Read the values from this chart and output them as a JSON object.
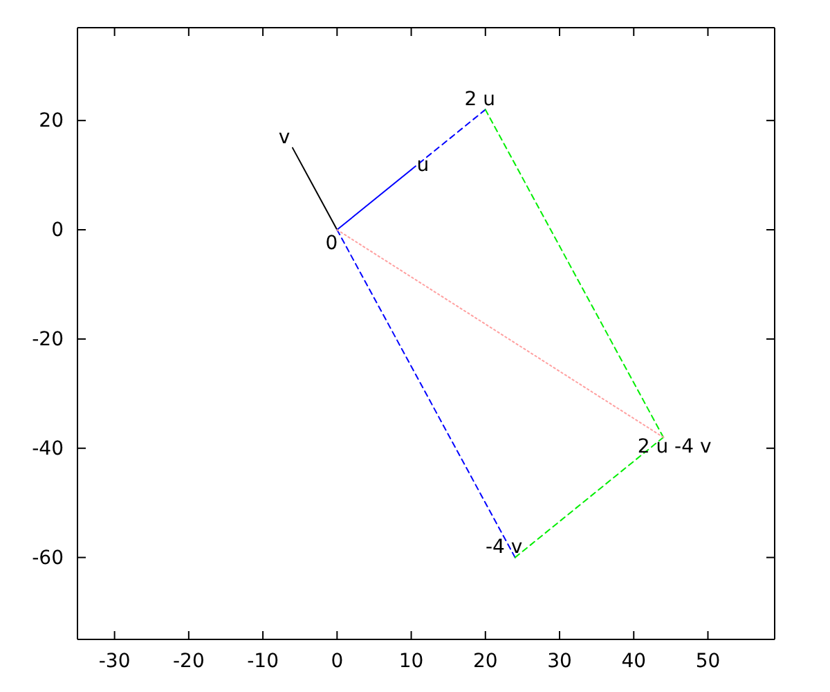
{
  "chart_data": {
    "type": "line",
    "xlim": [
      -35,
      59
    ],
    "ylim": [
      -75,
      37
    ],
    "xticks": [
      -30,
      -20,
      -10,
      0,
      10,
      20,
      30,
      40,
      50
    ],
    "yticks": [
      -60,
      -40,
      -20,
      0,
      20
    ],
    "grid": false,
    "series": [
      {
        "color": "#0000ff",
        "line_style": "solid",
        "x": [
          0,
          10
        ],
        "values": [
          0,
          11
        ]
      },
      {
        "color": "#000000",
        "line_style": "solid",
        "x": [
          0,
          -6
        ],
        "values": [
          0,
          15
        ]
      },
      {
        "color": "#0000ff",
        "line_style": "dashed",
        "x": [
          10,
          20
        ],
        "values": [
          11,
          22
        ]
      },
      {
        "color": "#0000ff",
        "line_style": "dashed",
        "x": [
          0,
          24
        ],
        "values": [
          0,
          -60
        ]
      },
      {
        "color": "#00ee00",
        "line_style": "dashed",
        "x": [
          20,
          44
        ],
        "values": [
          22,
          -38
        ]
      },
      {
        "color": "#00ee00",
        "line_style": "dashed",
        "x": [
          24,
          44
        ],
        "values": [
          -60,
          -38
        ]
      },
      {
        "color": "#ffa0a0",
        "line_style": "dotted",
        "x": [
          0,
          44
        ],
        "values": [
          0,
          -38
        ]
      }
    ],
    "annotations": [
      {
        "text": "2 u",
        "x": 20,
        "y": 22
      },
      {
        "text": "u",
        "x": 10,
        "y": 11
      },
      {
        "text": "v",
        "x": -6,
        "y": 15
      },
      {
        "text": "0",
        "x": 0,
        "y": 0
      },
      {
        "text": "-4 v",
        "x": 24,
        "y": -60
      },
      {
        "text": "2 u -4 v",
        "x": 44,
        "y": -38
      }
    ]
  }
}
